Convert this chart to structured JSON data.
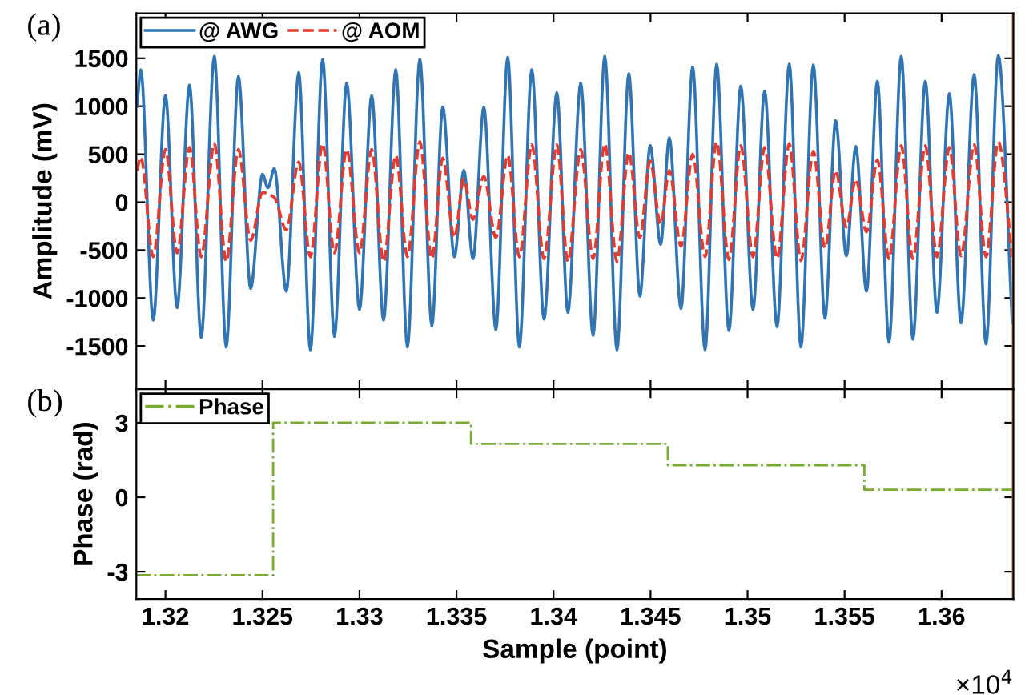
{
  "chart_data": [
    {
      "type": "line",
      "ylabel": "Amplitude (mV)",
      "xlim": [
        1.3185,
        1.3637
      ],
      "ylim": [
        -1950,
        1970
      ],
      "xticks": [
        1.32,
        1.325,
        1.33,
        1.335,
        1.34,
        1.345,
        1.35,
        1.355,
        1.36
      ],
      "yticks": [
        -1500,
        -1000,
        -500,
        0,
        500,
        1000,
        1500
      ],
      "tick_labels": "y",
      "legend": "top left",
      "grid": false,
      "annotations": [
        "(a)"
      ],
      "ref_lines": [
        {
          "axis": "x",
          "value": 1.3637,
          "color": "#e07a3c"
        }
      ],
      "series": [
        {
          "name": "@ AWG",
          "color": "#2f74b5",
          "line_style": "solid",
          "x": [
            1.31854,
            1.31873,
            1.31937,
            1.32,
            1.3206,
            1.32124,
            1.32184,
            1.32252,
            1.32313,
            1.32376,
            1.32439,
            1.325,
            1.32528,
            1.32561,
            1.32623,
            1.32687,
            1.32747,
            1.3281,
            1.32871,
            1.32934,
            1.33,
            1.33063,
            1.33124,
            1.33187,
            1.33247,
            1.33311,
            1.33373,
            1.33429,
            1.33489,
            1.33538,
            1.33585,
            1.33641,
            1.33703,
            1.33764,
            1.33824,
            1.33888,
            1.33951,
            1.34017,
            1.34074,
            1.3414,
            1.34204,
            1.34264,
            1.34327,
            1.34388,
            1.34445,
            1.34498,
            1.34552,
            1.34597,
            1.34657,
            1.34717,
            1.34781,
            1.34841,
            1.34904,
            1.34965,
            1.35028,
            1.35088,
            1.35152,
            1.35215,
            1.35275,
            1.35339,
            1.35399,
            1.35454,
            1.35509,
            1.35558,
            1.35613,
            1.35669,
            1.35729,
            1.35792,
            1.35852,
            1.35916,
            1.35976,
            1.3604,
            1.361,
            1.36168,
            1.36229,
            1.36292,
            1.36364
          ],
          "values": [
            1000,
            1380,
            -1230,
            1110,
            -1100,
            1220,
            -1410,
            1520,
            -1510,
            1310,
            -900,
            290,
            150,
            350,
            -930,
            1350,
            -1540,
            1490,
            -1400,
            1240,
            -1120,
            1110,
            -1230,
            1380,
            -1510,
            1490,
            -1290,
            990,
            -570,
            330,
            -590,
            990,
            -1330,
            1510,
            -1510,
            1380,
            -1220,
            1140,
            -1150,
            1240,
            -1390,
            1520,
            -1540,
            1340,
            -980,
            590,
            -440,
            670,
            -1110,
            1410,
            -1540,
            1440,
            -1340,
            1210,
            -1120,
            1160,
            -1300,
            1440,
            -1510,
            1430,
            -1210,
            850,
            -560,
            580,
            -930,
            1260,
            -1460,
            1520,
            -1430,
            1260,
            -1150,
            1130,
            -1260,
            1330,
            -1480,
            1530,
            -1260
          ]
        },
        {
          "name": "@ AOM",
          "color": "#e8392f",
          "line_style": "dashed",
          "x": [
            1.31854,
            1.31873,
            1.31937,
            1.32,
            1.3206,
            1.32124,
            1.32184,
            1.32252,
            1.32313,
            1.32376,
            1.32439,
            1.325,
            1.32561,
            1.32623,
            1.32687,
            1.32747,
            1.3281,
            1.32871,
            1.32934,
            1.33,
            1.33063,
            1.33124,
            1.33187,
            1.33247,
            1.33311,
            1.33373,
            1.33429,
            1.33489,
            1.33538,
            1.33585,
            1.33641,
            1.33703,
            1.33764,
            1.33824,
            1.33888,
            1.33951,
            1.34017,
            1.34074,
            1.3414,
            1.34204,
            1.34264,
            1.34327,
            1.34388,
            1.34445,
            1.34498,
            1.34552,
            1.34597,
            1.34657,
            1.34717,
            1.34781,
            1.34841,
            1.34904,
            1.34965,
            1.35028,
            1.35088,
            1.35152,
            1.35215,
            1.35275,
            1.35339,
            1.35399,
            1.35454,
            1.35509,
            1.35558,
            1.35613,
            1.35669,
            1.35729,
            1.35792,
            1.35852,
            1.35916,
            1.35976,
            1.3604,
            1.361,
            1.36168,
            1.36229,
            1.36292,
            1.36364
          ],
          "values": [
            330,
            470,
            -570,
            550,
            -530,
            570,
            -570,
            610,
            -620,
            550,
            -400,
            100,
            50,
            -290,
            420,
            -570,
            610,
            -530,
            550,
            -530,
            550,
            -620,
            490,
            -570,
            630,
            -590,
            460,
            -370,
            240,
            -180,
            270,
            -370,
            490,
            -570,
            600,
            -590,
            600,
            -620,
            550,
            -590,
            610,
            -620,
            520,
            -370,
            430,
            -230,
            330,
            -460,
            500,
            -570,
            630,
            -600,
            590,
            -570,
            570,
            -590,
            610,
            -610,
            530,
            -480,
            330,
            -260,
            240,
            -310,
            440,
            -590,
            590,
            -590,
            590,
            -570,
            570,
            -560,
            600,
            -570,
            630,
            -570
          ]
        }
      ]
    },
    {
      "type": "step",
      "xlabel": "Sample (point)",
      "ylabel": "Phase (rad)",
      "xlim": [
        1.3185,
        1.3637
      ],
      "ylim": [
        -4.1,
        4.35
      ],
      "xticks": [
        1.32,
        1.325,
        1.33,
        1.335,
        1.34,
        1.345,
        1.35,
        1.355,
        1.36
      ],
      "yticks": [
        {
          "value": -3,
          "label": "-3"
        },
        0,
        3
      ],
      "legend": "top left",
      "grid": false,
      "annotations": [
        "(b)",
        "×10$^{4}$"
      ],
      "ref_lines": [
        {
          "axis": "x",
          "value": 1.3637,
          "color": "#e07a3c"
        }
      ],
      "series": [
        {
          "name": "Phase",
          "color": "#77ac30",
          "line_style": "dashdot",
          "x": [
            1.3185,
            1.32555,
            1.33575,
            1.34589,
            1.35602,
            1.3637
          ],
          "values": [
            -3.14,
            3.0,
            2.15,
            1.29,
            0.3,
            0.3
          ]
        }
      ]
    }
  ]
}
